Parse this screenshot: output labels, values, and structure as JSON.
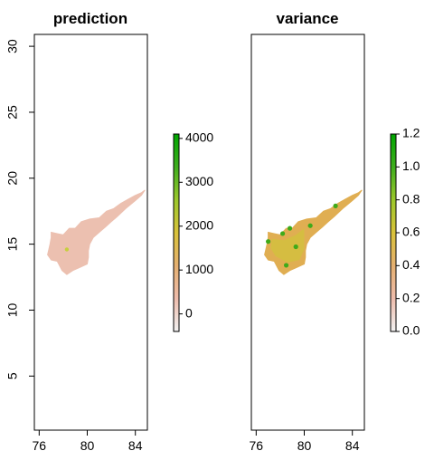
{
  "chart_data": [
    {
      "type": "heatmap",
      "title": "prediction",
      "xlabel": "",
      "ylabel": "",
      "xlim": [
        75.6,
        85.0
      ],
      "ylim": [
        0.9,
        30.9
      ],
      "x_ticks": [
        76,
        80,
        84
      ],
      "y_ticks": [
        5,
        10,
        15,
        20,
        25,
        30
      ],
      "x_tick_labels": [
        "76",
        "80",
        "84"
      ],
      "y_tick_labels": [
        "5",
        "10",
        "15",
        "20",
        "25",
        "30"
      ],
      "colorbar": {
        "min": -400,
        "max": 4100,
        "ticks": [
          0,
          1000,
          2000,
          3000,
          4000
        ],
        "tick_labels": [
          "0",
          "1000",
          "2000",
          "3000",
          "4000"
        ],
        "colors": [
          "#f2f2f2",
          "#eebcac",
          "#e5b070",
          "#d9c23a",
          "#9cc82c",
          "#3fae1e",
          "#00a600"
        ]
      },
      "dominant_color": "#ecc0b0",
      "highlight_color": "#c6cf3e",
      "highlight_point": [
        78.3,
        14.6
      ]
    },
    {
      "type": "heatmap",
      "title": "variance",
      "xlabel": "",
      "ylabel": "",
      "xlim": [
        75.6,
        85.0
      ],
      "ylim": [
        0.9,
        30.9
      ],
      "x_ticks": [
        76,
        80,
        84
      ],
      "x_tick_labels": [
        "76",
        "80",
        "84"
      ],
      "colorbar": {
        "min": 0.0,
        "max": 1.2,
        "ticks": [
          0.0,
          0.2,
          0.4,
          0.6,
          0.8,
          1.0,
          1.2
        ],
        "tick_labels": [
          "0.0",
          "0.2",
          "0.4",
          "0.6",
          "0.8",
          "1.0",
          "1.2"
        ],
        "colors": [
          "#f2f2f2",
          "#eebcac",
          "#e5b070",
          "#d9c23a",
          "#9cc82c",
          "#3fae1e",
          "#00a600"
        ]
      },
      "dominant_color": "#e0ae52",
      "inland_color": "#d2c23c",
      "hotspot_color": "#3faa1a",
      "hotspots": [
        [
          77.0,
          15.2
        ],
        [
          78.2,
          15.8
        ],
        [
          78.8,
          16.2
        ],
        [
          80.5,
          16.4
        ],
        [
          82.6,
          17.9
        ],
        [
          79.3,
          14.8
        ],
        [
          78.5,
          13.4
        ]
      ]
    }
  ],
  "region_outline": [
    [
      77.0,
      15.9
    ],
    [
      77.5,
      15.8
    ],
    [
      78.0,
      15.7
    ],
    [
      78.5,
      16.2
    ],
    [
      79.0,
      16.2
    ],
    [
      79.5,
      16.7
    ],
    [
      80.2,
      16.9
    ],
    [
      81.0,
      17.0
    ],
    [
      81.6,
      17.5
    ],
    [
      82.2,
      17.7
    ],
    [
      82.8,
      18.1
    ],
    [
      83.4,
      18.4
    ],
    [
      84.0,
      18.7
    ],
    [
      84.5,
      18.9
    ],
    [
      84.8,
      19.1
    ],
    [
      84.5,
      18.7
    ],
    [
      84.0,
      18.3
    ],
    [
      83.2,
      17.7
    ],
    [
      82.5,
      17.1
    ],
    [
      82.0,
      16.7
    ],
    [
      81.5,
      16.3
    ],
    [
      81.0,
      15.9
    ],
    [
      80.5,
      15.5
    ],
    [
      80.2,
      15.0
    ],
    [
      80.1,
      14.5
    ],
    [
      80.1,
      14.0
    ],
    [
      80.0,
      13.5
    ],
    [
      79.3,
      13.2
    ],
    [
      78.8,
      13.0
    ],
    [
      78.3,
      12.7
    ],
    [
      77.9,
      13.0
    ],
    [
      77.5,
      13.7
    ],
    [
      77.0,
      13.8
    ],
    [
      76.7,
      14.2
    ],
    [
      76.8,
      14.6
    ],
    [
      76.9,
      15.0
    ],
    [
      77.0,
      15.5
    ]
  ]
}
